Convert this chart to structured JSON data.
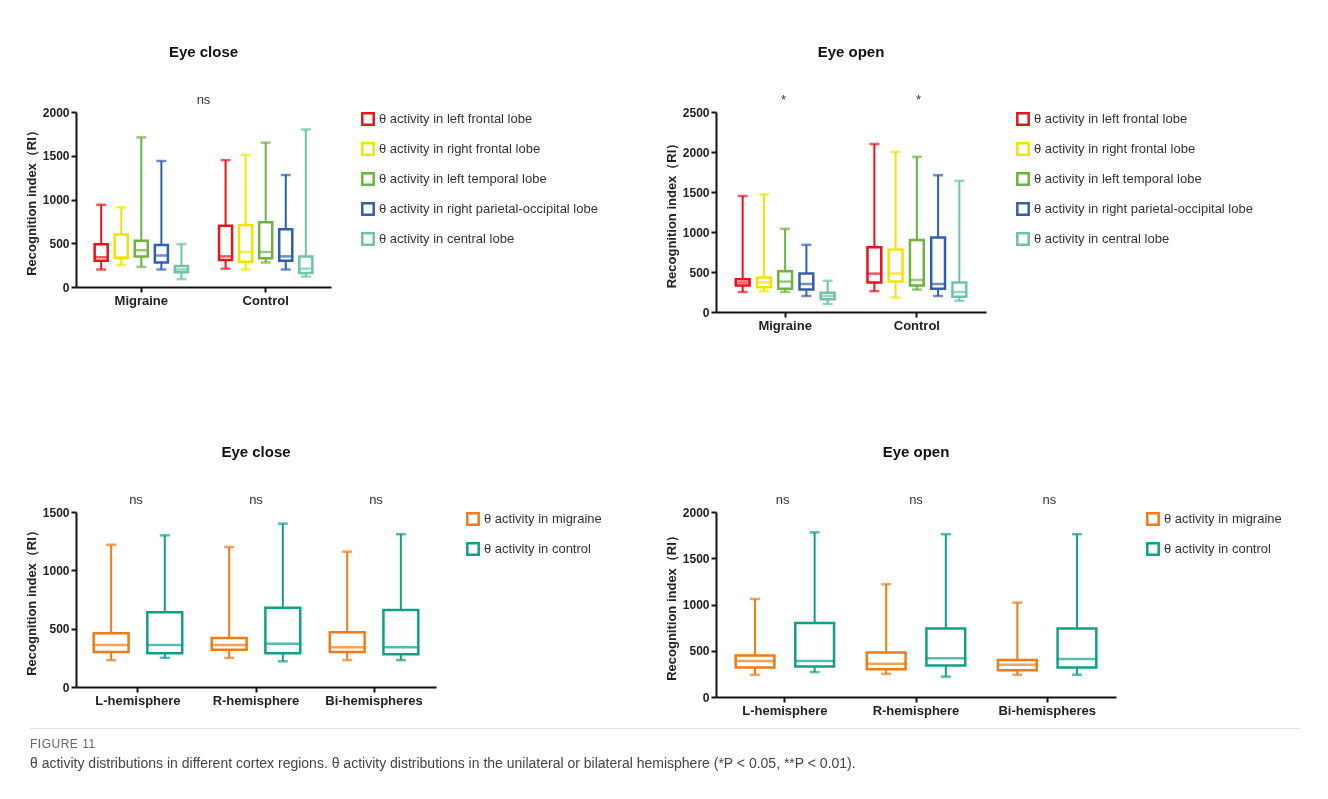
{
  "chart_data": [
    {
      "type": "box",
      "title": "Eye close",
      "ylabel": "Recognition index（RI）",
      "categories": [
        "Migraine",
        "Control"
      ],
      "ylim": [
        0,
        2000
      ],
      "yticks": [
        0,
        500,
        1000,
        1500,
        2000
      ],
      "legend": "right",
      "annotations": [
        "ns"
      ],
      "series": [
        {
          "name": "θ activity in left frontal lobe",
          "color": "#e8141c",
          "boxes": [
            {
              "low": 200,
              "q1": 300,
              "median": 340,
              "q3": 490,
              "high": 940
            },
            {
              "low": 210,
              "q1": 310,
              "median": 350,
              "q3": 700,
              "high": 1450
            }
          ]
        },
        {
          "name": "θ activity in right frontal lobe",
          "color": "#f2e400",
          "boxes": [
            {
              "low": 250,
              "q1": 330,
              "median": 340,
              "q3": 600,
              "high": 910
            },
            {
              "low": 200,
              "q1": 290,
              "median": 400,
              "q3": 710,
              "high": 1510
            }
          ]
        },
        {
          "name": "θ activity in left temporal lobe",
          "color": "#6cb33f",
          "boxes": [
            {
              "low": 230,
              "q1": 350,
              "median": 420,
              "q3": 530,
              "high": 1710
            },
            {
              "low": 280,
              "q1": 330,
              "median": 400,
              "q3": 740,
              "high": 1650
            }
          ]
        },
        {
          "name": "θ activity in right parietal-occipital lobe",
          "color": "#2f5fb0",
          "boxes": [
            {
              "low": 200,
              "q1": 280,
              "median": 360,
              "q3": 480,
              "high": 1440
            },
            {
              "low": 200,
              "q1": 300,
              "median": 350,
              "q3": 660,
              "high": 1280
            }
          ]
        },
        {
          "name": "θ activity in central lobe",
          "color": "#6cc3a5",
          "boxes": [
            {
              "low": 90,
              "q1": 170,
              "median": 200,
              "q3": 240,
              "high": 490
            },
            {
              "low": 120,
              "q1": 160,
              "median": 210,
              "q3": 350,
              "high": 1800
            }
          ]
        }
      ]
    },
    {
      "type": "box",
      "title": "Eye open",
      "ylabel": "Recognition index（RI）",
      "categories": [
        "Migraine",
        "Control"
      ],
      "ylim": [
        0,
        2500
      ],
      "yticks": [
        0,
        500,
        1000,
        1500,
        2000,
        2500
      ],
      "legend": "right",
      "annotations": [
        "*",
        "*"
      ],
      "series": [
        {
          "name": "θ activity in left frontal lobe",
          "color": "#e8141c",
          "boxes": [
            {
              "low": 250,
              "q1": 330,
              "median": 370,
              "q3": 410,
              "high": 1450
            },
            {
              "low": 260,
              "q1": 370,
              "median": 480,
              "q3": 810,
              "high": 2100
            }
          ]
        },
        {
          "name": "θ activity in right frontal lobe",
          "color": "#f2e400",
          "boxes": [
            {
              "low": 260,
              "q1": 310,
              "median": 370,
              "q3": 430,
              "high": 1470
            },
            {
              "low": 180,
              "q1": 380,
              "median": 480,
              "q3": 780,
              "high": 2000
            }
          ]
        },
        {
          "name": "θ activity in left temporal lobe",
          "color": "#6cb33f",
          "boxes": [
            {
              "low": 250,
              "q1": 290,
              "median": 380,
              "q3": 510,
              "high": 1040
            },
            {
              "low": 280,
              "q1": 330,
              "median": 400,
              "q3": 900,
              "high": 1940
            }
          ]
        },
        {
          "name": "θ activity in right parietal-occipital lobe",
          "color": "#2f5fb0",
          "boxes": [
            {
              "low": 200,
              "q1": 280,
              "median": 350,
              "q3": 480,
              "high": 840
            },
            {
              "low": 200,
              "q1": 290,
              "median": 350,
              "q3": 930,
              "high": 1710
            }
          ]
        },
        {
          "name": "θ activity in central lobe",
          "color": "#6cc3a5",
          "boxes": [
            {
              "low": 100,
              "q1": 160,
              "median": 200,
              "q3": 240,
              "high": 390
            },
            {
              "low": 140,
              "q1": 190,
              "median": 250,
              "q3": 370,
              "high": 1640
            }
          ]
        }
      ]
    },
    {
      "type": "box",
      "title": "Eye close",
      "ylabel": "Recognition index（RI）",
      "categories": [
        "L-hemisphere",
        "R-hemisphere",
        "Bi-hemispheres"
      ],
      "ylim": [
        0,
        1500
      ],
      "yticks": [
        0,
        500,
        1000,
        1500
      ],
      "legend": "right",
      "annotations": [
        "ns",
        "ns",
        "ns"
      ],
      "series": [
        {
          "name": "θ activity in migraine",
          "color": "#f07a14",
          "boxes": [
            {
              "low": 230,
              "q1": 300,
              "median": 360,
              "q3": 460,
              "high": 1220
            },
            {
              "low": 250,
              "q1": 320,
              "median": 360,
              "q3": 420,
              "high": 1200
            },
            {
              "low": 230,
              "q1": 300,
              "median": 340,
              "q3": 470,
              "high": 1160
            }
          ]
        },
        {
          "name": "θ activity in control",
          "color": "#10a08a",
          "boxes": [
            {
              "low": 250,
              "q1": 290,
              "median": 360,
              "q3": 640,
              "high": 1300
            },
            {
              "low": 220,
              "q1": 290,
              "median": 370,
              "q3": 680,
              "high": 1400
            },
            {
              "low": 230,
              "q1": 280,
              "median": 340,
              "q3": 660,
              "high": 1310
            }
          ]
        }
      ]
    },
    {
      "type": "box",
      "title": "Eye open",
      "ylabel": "Recognition index（RI）",
      "categories": [
        "L-hemisphere",
        "R-hemisphere",
        "Bi-hemispheres"
      ],
      "ylim": [
        0,
        2000
      ],
      "yticks": [
        0,
        500,
        1000,
        1500,
        2000
      ],
      "legend": "right",
      "annotations": [
        "ns",
        "ns",
        "ns"
      ],
      "series": [
        {
          "name": "θ activity in migraine",
          "color": "#f07a14",
          "boxes": [
            {
              "low": 240,
              "q1": 320,
              "median": 390,
              "q3": 450,
              "high": 1060
            },
            {
              "low": 250,
              "q1": 300,
              "median": 360,
              "q3": 480,
              "high": 1220
            },
            {
              "low": 240,
              "q1": 290,
              "median": 350,
              "q3": 400,
              "high": 1020
            }
          ]
        },
        {
          "name": "θ activity in control",
          "color": "#10a08a",
          "boxes": [
            {
              "low": 270,
              "q1": 330,
              "median": 390,
              "q3": 800,
              "high": 1780
            },
            {
              "low": 220,
              "q1": 340,
              "median": 420,
              "q3": 740,
              "high": 1760
            },
            {
              "low": 240,
              "q1": 320,
              "median": 410,
              "q3": 740,
              "high": 1760
            }
          ]
        }
      ]
    },
    {
      "type": "other",
      "annotations": [
        "FIGURE 11",
        "θ activity distributions in different cortex regions. θ activity distributions in the unilateral or bilateral hemisphere (*P < 0.05, **P < 0.01)."
      ]
    }
  ]
}
